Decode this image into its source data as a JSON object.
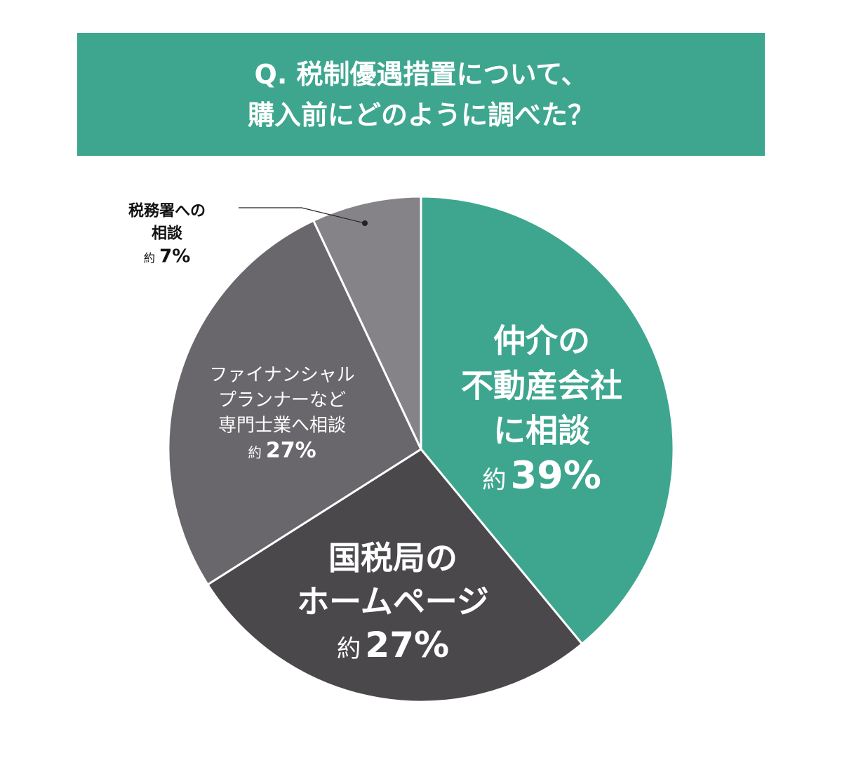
{
  "title": {
    "line1": "Q. 税制優遇措置について、",
    "line2": "購入前にどのように調べた？"
  },
  "chart_data": {
    "type": "pie",
    "title": "Q. 税制優遇措置について、購入前にどのように調べた？",
    "start": "12 o'clock, clockwise",
    "slices": [
      {
        "label_lines": [
          "仲介の",
          "不動産会社",
          "に相談"
        ],
        "prefix": "約",
        "value": 39,
        "value_label": "39%",
        "color": "#3ea68f"
      },
      {
        "label_lines": [
          "国税局の",
          "ホームページ"
        ],
        "prefix": "約",
        "value": 27,
        "value_label": "27%",
        "color": "#4a484b"
      },
      {
        "label_lines": [
          "ファイナンシャル",
          "プランナーなど",
          "専門士業へ相談"
        ],
        "prefix": "約",
        "value": 27,
        "value_label": "27%",
        "color": "#69676b"
      },
      {
        "label_lines": [
          "税務署への",
          "相談"
        ],
        "prefix": "約",
        "value": 7,
        "value_label": "7%",
        "color": "#858387"
      }
    ]
  }
}
